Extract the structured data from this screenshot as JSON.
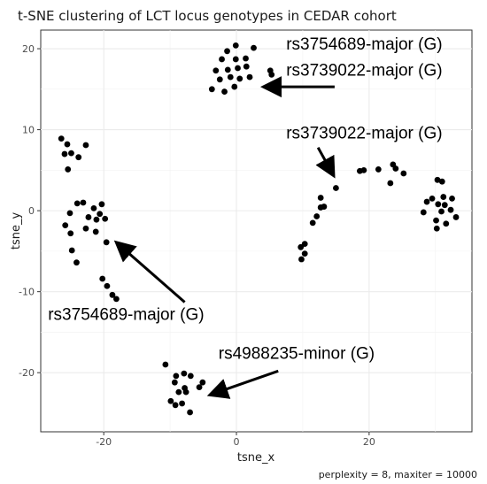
{
  "chart_data": {
    "type": "scatter",
    "title": "t-SNE clustering of LCT locus genotypes in CEDAR cohort",
    "xlabel": "tsne_x",
    "ylabel": "tsne_y",
    "caption": "perplexity = 8, maxiter = 10000",
    "xlim": [
      -29.5,
      35.5
    ],
    "ylim": [
      -27.3,
      22.3
    ],
    "xticks": [
      -20,
      0,
      20
    ],
    "yticks": [
      -20,
      -10,
      0,
      10,
      20
    ],
    "grid": true,
    "legend": "none",
    "point_color": "#000000",
    "points": [
      [
        -0.1,
        20.4
      ],
      [
        -1.4,
        19.7
      ],
      [
        2.6,
        20.1
      ],
      [
        -2.2,
        18.7
      ],
      [
        -0.1,
        18.7
      ],
      [
        1.4,
        18.8
      ],
      [
        -3.1,
        17.3
      ],
      [
        -1.3,
        17.4
      ],
      [
        0.2,
        17.6
      ],
      [
        1.5,
        17.8
      ],
      [
        -2.5,
        16.2
      ],
      [
        -0.9,
        16.5
      ],
      [
        0.5,
        16.3
      ],
      [
        2.0,
        16.5
      ],
      [
        -3.7,
        15.0
      ],
      [
        -1.8,
        14.7
      ],
      [
        -0.3,
        15.3
      ],
      [
        5.1,
        17.3
      ],
      [
        5.3,
        16.8
      ],
      [
        -26.4,
        8.9
      ],
      [
        -25.5,
        8.2
      ],
      [
        -22.7,
        8.1
      ],
      [
        -25.9,
        7.0
      ],
      [
        -24.9,
        7.1
      ],
      [
        -23.8,
        6.6
      ],
      [
        -25.4,
        5.1
      ],
      [
        -24.0,
        0.9
      ],
      [
        -23.1,
        1.0
      ],
      [
        -21.5,
        0.3
      ],
      [
        -20.3,
        0.8
      ],
      [
        -25.1,
        -0.3
      ],
      [
        -20.6,
        -0.4
      ],
      [
        -22.3,
        -0.8
      ],
      [
        -21.1,
        -1.1
      ],
      [
        -19.8,
        -1.0
      ],
      [
        -25.8,
        -1.8
      ],
      [
        -22.7,
        -2.2
      ],
      [
        -21.2,
        -2.6
      ],
      [
        -25.0,
        -2.8
      ],
      [
        -19.6,
        -3.9
      ],
      [
        -24.8,
        -4.9
      ],
      [
        -24.1,
        -6.4
      ],
      [
        -20.2,
        -8.4
      ],
      [
        -19.5,
        -9.3
      ],
      [
        -18.7,
        -10.4
      ],
      [
        -18.1,
        -10.9
      ],
      [
        9.7,
        -4.5
      ],
      [
        10.3,
        -4.1
      ],
      [
        10.3,
        -5.3
      ],
      [
        9.8,
        -6.0
      ],
      [
        11.5,
        -1.5
      ],
      [
        12.1,
        -0.7
      ],
      [
        12.7,
        0.4
      ],
      [
        13.2,
        0.5
      ],
      [
        12.7,
        1.6
      ],
      [
        15.0,
        2.8
      ],
      [
        18.6,
        4.9
      ],
      [
        19.2,
        5.0
      ],
      [
        21.4,
        5.1
      ],
      [
        23.6,
        5.7
      ],
      [
        24.0,
        5.2
      ],
      [
        25.2,
        4.6
      ],
      [
        23.2,
        3.4
      ],
      [
        30.3,
        3.8
      ],
      [
        31.0,
        3.6
      ],
      [
        28.7,
        1.1
      ],
      [
        29.5,
        1.5
      ],
      [
        31.2,
        1.7
      ],
      [
        32.5,
        1.5
      ],
      [
        30.4,
        0.8
      ],
      [
        31.4,
        0.7
      ],
      [
        32.3,
        0.1
      ],
      [
        28.2,
        -0.2
      ],
      [
        30.9,
        -0.1
      ],
      [
        30.1,
        -1.2
      ],
      [
        33.1,
        -0.8
      ],
      [
        31.6,
        -1.6
      ],
      [
        30.2,
        -2.2
      ],
      [
        -10.7,
        -19.0
      ],
      [
        -9.1,
        -20.4
      ],
      [
        -7.9,
        -20.1
      ],
      [
        -6.9,
        -20.4
      ],
      [
        -9.3,
        -21.2
      ],
      [
        -5.1,
        -21.2
      ],
      [
        -7.8,
        -21.9
      ],
      [
        -5.6,
        -21.8
      ],
      [
        -8.7,
        -22.4
      ],
      [
        -7.6,
        -22.4
      ],
      [
        -9.9,
        -23.5
      ],
      [
        -8.2,
        -23.8
      ],
      [
        -9.2,
        -24.0
      ],
      [
        -7.0,
        -24.9
      ]
    ],
    "annotations": [
      {
        "text": "rs3754689-major (G)",
        "anchor": [
          7.5,
          19.9
        ]
      },
      {
        "text": "rs3739022-major (G)",
        "anchor": [
          7.5,
          16.7
        ]
      },
      {
        "text": "rs3739022-major (G)",
        "anchor": [
          7.5,
          8.9
        ]
      },
      {
        "text": "rs3754689-major (G)",
        "anchor": [
          -28.4,
          -13.5
        ]
      },
      {
        "text": "rs4988235-minor (G)",
        "anchor": [
          -2.7,
          -18.3
        ]
      }
    ],
    "arrows": [
      {
        "from": [
          14.8,
          15.3
        ],
        "to": [
          4.6,
          15.3
        ]
      },
      {
        "from": [
          12.3,
          7.8
        ],
        "to": [
          14.4,
          4.7
        ]
      },
      {
        "from": [
          -7.8,
          -11.3
        ],
        "to": [
          -17.7,
          -4.2
        ]
      },
      {
        "from": [
          6.3,
          -19.8
        ],
        "to": [
          -3.5,
          -22.6
        ]
      }
    ]
  }
}
